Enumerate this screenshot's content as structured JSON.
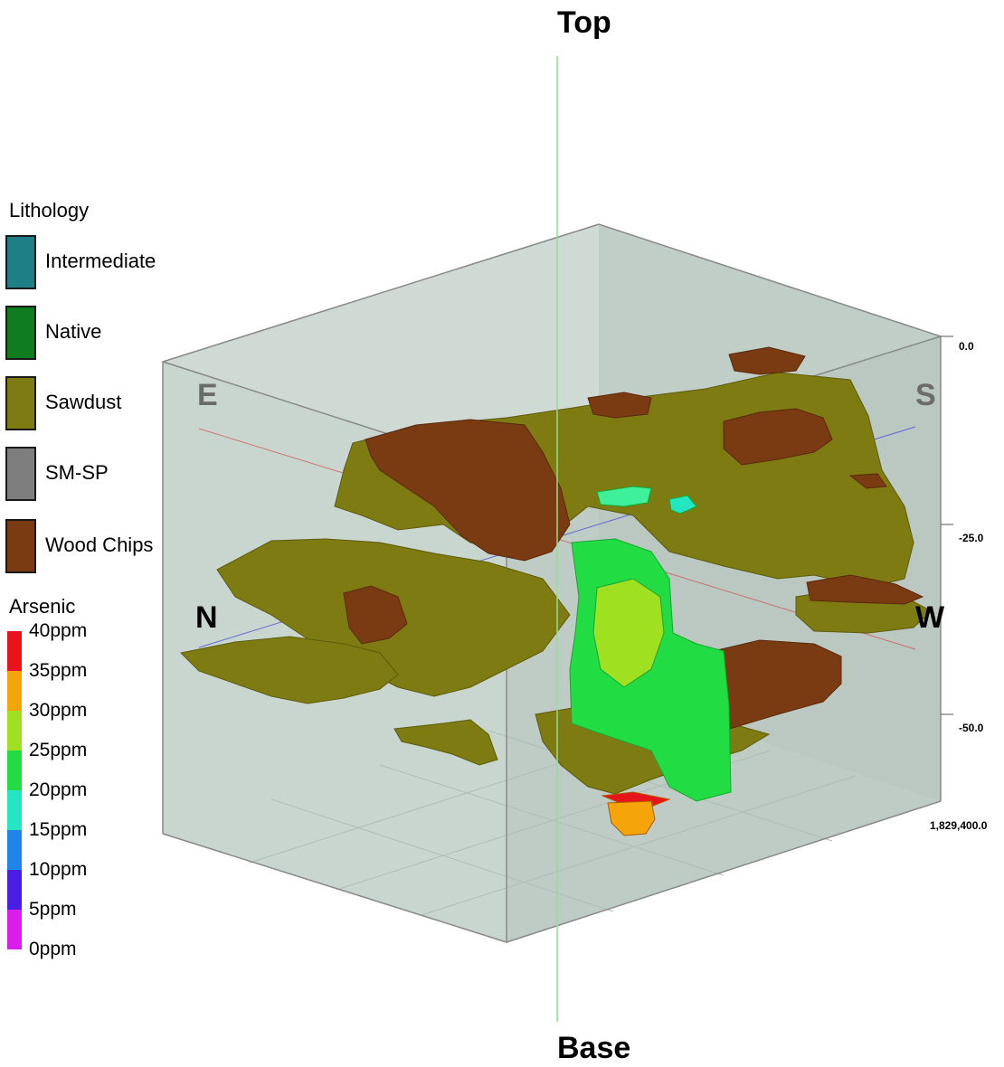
{
  "view": {
    "top_label": "Top",
    "base_label": "Base",
    "compass": {
      "e": "E",
      "s": "S",
      "n": "N",
      "w": "W"
    },
    "depth_ticks": [
      "0.0",
      "-25.0",
      "-50.0"
    ],
    "easting_label": "1,829,400.0"
  },
  "legend": {
    "lithology_title": "Lithology",
    "lithology": [
      {
        "label": "Intermediate",
        "color": "#1e7f86"
      },
      {
        "label": "Native",
        "color": "#0f7d1f"
      },
      {
        "label": "Sawdust",
        "color": "#7d7b12"
      },
      {
        "label": "SM-SP",
        "color": "#7e7e7e"
      },
      {
        "label": "Wood Chips",
        "color": "#7a3a12"
      }
    ],
    "arsenic_title": "Arsenic",
    "arsenic_labels": [
      "40ppm",
      "35ppm",
      "30ppm",
      "25ppm",
      "20ppm",
      "15ppm",
      "10ppm",
      "5ppm",
      "0ppm"
    ],
    "arsenic_colors": [
      "#e8141c",
      "#f5a40a",
      "#9fe020",
      "#22dc44",
      "#25e6c2",
      "#1f86e8",
      "#4a1ee0",
      "#d81ee8"
    ]
  }
}
